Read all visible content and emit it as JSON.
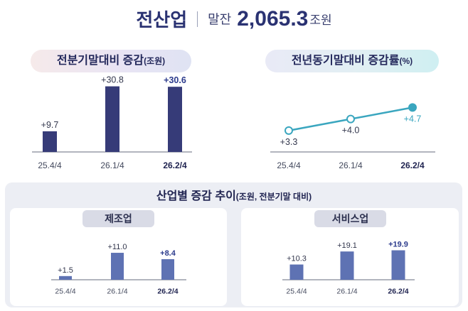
{
  "header": {
    "title": "전산업",
    "label": "말잔",
    "value": "2,065.3",
    "unit": "조원"
  },
  "colors": {
    "navy": "#363b78",
    "teal": "#3aa6bf",
    "bar_light": "#5e72b3",
    "bold_label": "#2c3b8c",
    "teal_label": "#3aa6bf"
  },
  "panel_title": {
    "main": "산업별 증감 추이",
    "sub": "(조원, 전분기말 대비)"
  },
  "chart_data": [
    {
      "type": "bar",
      "title": "전분기말대비 증감",
      "title_unit": "(조원)",
      "categories": [
        "25.4/4",
        "26.1/4",
        "26.2/4"
      ],
      "values": [
        9.7,
        30.8,
        30.6
      ],
      "value_labels": [
        "+9.7",
        "+30.8",
        "+30.6"
      ],
      "highlight_index": 2,
      "ylim": [
        0,
        34
      ]
    },
    {
      "type": "line",
      "title": "전년동기말대비 증감률",
      "title_unit": "(%)",
      "categories": [
        "25.4/4",
        "26.1/4",
        "26.2/4"
      ],
      "values": [
        3.3,
        4.0,
        4.7
      ],
      "value_labels": [
        "+3.3",
        "+4.0",
        "+4.7"
      ],
      "highlight_index": 2,
      "ylim": [
        2.0,
        6.4
      ]
    },
    {
      "type": "bar",
      "title": "제조업",
      "categories": [
        "25.4/4",
        "26.1/4",
        "26.2/4"
      ],
      "values": [
        1.5,
        11.0,
        8.4
      ],
      "value_labels": [
        "+1.5",
        "+11.0",
        "+8.4"
      ],
      "highlight_index": 2,
      "ylim": [
        0,
        14.2
      ]
    },
    {
      "type": "bar",
      "title": "서비스업",
      "categories": [
        "25.4/4",
        "26.1/4",
        "26.2/4"
      ],
      "values": [
        10.3,
        19.1,
        19.9
      ],
      "value_labels": [
        "+10.3",
        "+19.1",
        "+19.9"
      ],
      "highlight_index": 2,
      "ylim": [
        0,
        23.5
      ]
    }
  ]
}
